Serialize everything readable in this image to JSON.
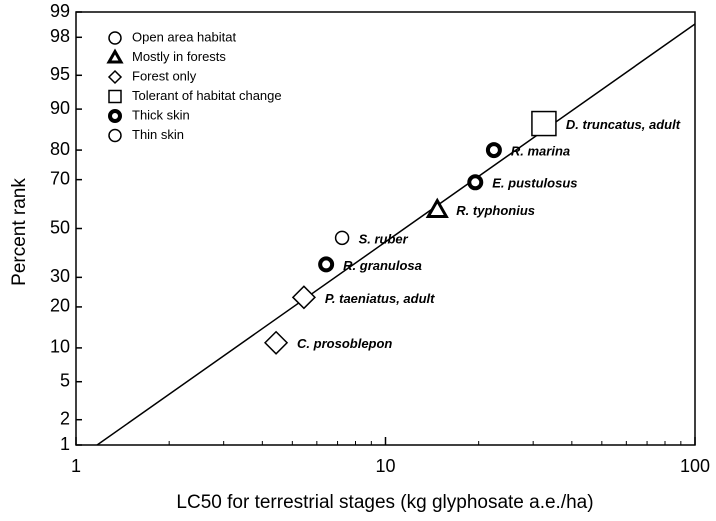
{
  "chart_data": {
    "type": "scatter",
    "xlabel": "LC50 for terrestrial stages (kg glyphosate a.e./ha)",
    "ylabel": "Percent rank",
    "xscale": "log",
    "yscale": "probability",
    "xlim": [
      1,
      100
    ],
    "xticks": [
      1,
      10,
      100
    ],
    "xminorticks": [
      2,
      3,
      4,
      5,
      6,
      7,
      8,
      9,
      20,
      30,
      40,
      50,
      60,
      70,
      80,
      90
    ],
    "ylim": [
      1,
      99
    ],
    "yticks": [
      1,
      2,
      5,
      10,
      20,
      30,
      50,
      70,
      80,
      90,
      95,
      98,
      99
    ],
    "color": "#000000",
    "legend": [
      {
        "label": "Open area habitat",
        "marker": "circle-open"
      },
      {
        "label": "Mostly in forests",
        "marker": "triangle"
      },
      {
        "label": "Forest only",
        "marker": "diamond"
      },
      {
        "label": "Tolerant of habitat change",
        "marker": "square"
      },
      {
        "label": "Thick skin",
        "marker": "circle-thick"
      },
      {
        "label": "Thin skin",
        "marker": "circle-open"
      }
    ],
    "points": [
      {
        "label": "C. prosoblepon",
        "x": 4.43,
        "y": 11,
        "marker": "diamond"
      },
      {
        "label": "P. taeniatus, adult",
        "x": 5.45,
        "y": 23,
        "marker": "diamond"
      },
      {
        "label": "R. granulosa",
        "x": 6.43,
        "y": 35,
        "marker": "circle-thick"
      },
      {
        "label": "S. ruber",
        "x": 7.24,
        "y": 46,
        "marker": "circle-open"
      },
      {
        "label": "R. typhonius",
        "x": 14.7,
        "y": 58,
        "marker": "triangle"
      },
      {
        "label": "E. pustulosus",
        "x": 19.5,
        "y": 69,
        "marker": "circle-thick"
      },
      {
        "label": "R. marina",
        "x": 22.4,
        "y": 80,
        "marker": "circle-thick"
      },
      {
        "label": "D. truncatus, adult",
        "x": 32.5,
        "y": 87,
        "marker": "square"
      }
    ],
    "fit_line": {
      "x": [
        1.17,
        100
      ],
      "y": [
        1,
        98.6
      ]
    }
  }
}
